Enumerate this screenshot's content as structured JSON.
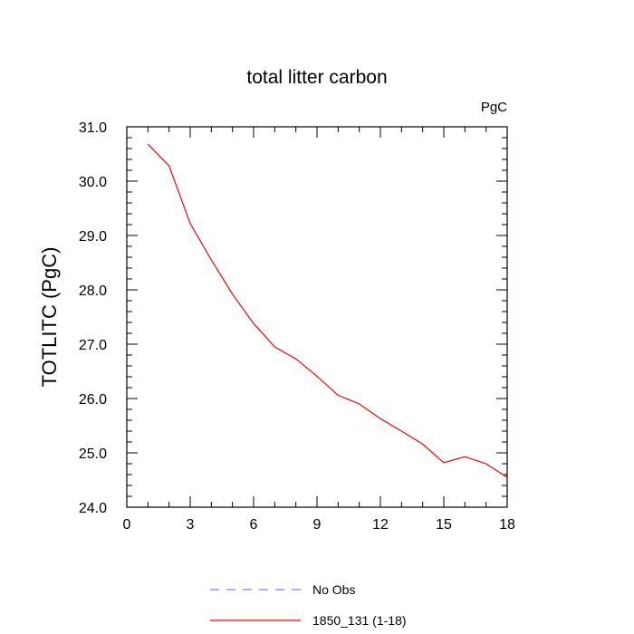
{
  "chart_data": {
    "type": "line",
    "title": "total litter carbon",
    "units_label": "PgC",
    "xlabel": "",
    "ylabel": "TOTLITC  (PgC)",
    "xlim": [
      0,
      18
    ],
    "ylim": [
      24.0,
      31.0
    ],
    "x_ticks": [
      0,
      3,
      6,
      9,
      12,
      15,
      18
    ],
    "x_tick_labels": [
      "0",
      "3",
      "6",
      "9",
      "12",
      "15",
      "18"
    ],
    "y_ticks": [
      24.0,
      25.0,
      26.0,
      27.0,
      28.0,
      29.0,
      30.0,
      31.0
    ],
    "y_tick_labels": [
      "24.0",
      "25.0",
      "26.0",
      "27.0",
      "28.0",
      "29.0",
      "30.0",
      "31.0"
    ],
    "grid": false,
    "legend_position": "bottom",
    "series": [
      {
        "name": "1850_131 (1-18)",
        "color": "#ff0000",
        "dash": "solid",
        "x": [
          1,
          2,
          3,
          4,
          5,
          6,
          7,
          8,
          9,
          10,
          11,
          12,
          13,
          14,
          15,
          16,
          17,
          18
        ],
        "y": [
          30.68,
          30.28,
          29.22,
          28.55,
          27.92,
          27.38,
          26.95,
          26.73,
          26.41,
          26.06,
          25.9,
          25.63,
          25.4,
          25.16,
          24.82,
          24.93,
          24.8,
          24.55
        ]
      },
      {
        "name": "No Obs",
        "color": "#7f7fff",
        "dash": "dashed",
        "x": [],
        "y": []
      }
    ],
    "legend": [
      {
        "label": "No Obs",
        "color": "#7f7fff",
        "dash": "dashed"
      },
      {
        "label": "1850_131 (1-18)",
        "color": "#ff0000",
        "dash": "solid"
      }
    ]
  }
}
